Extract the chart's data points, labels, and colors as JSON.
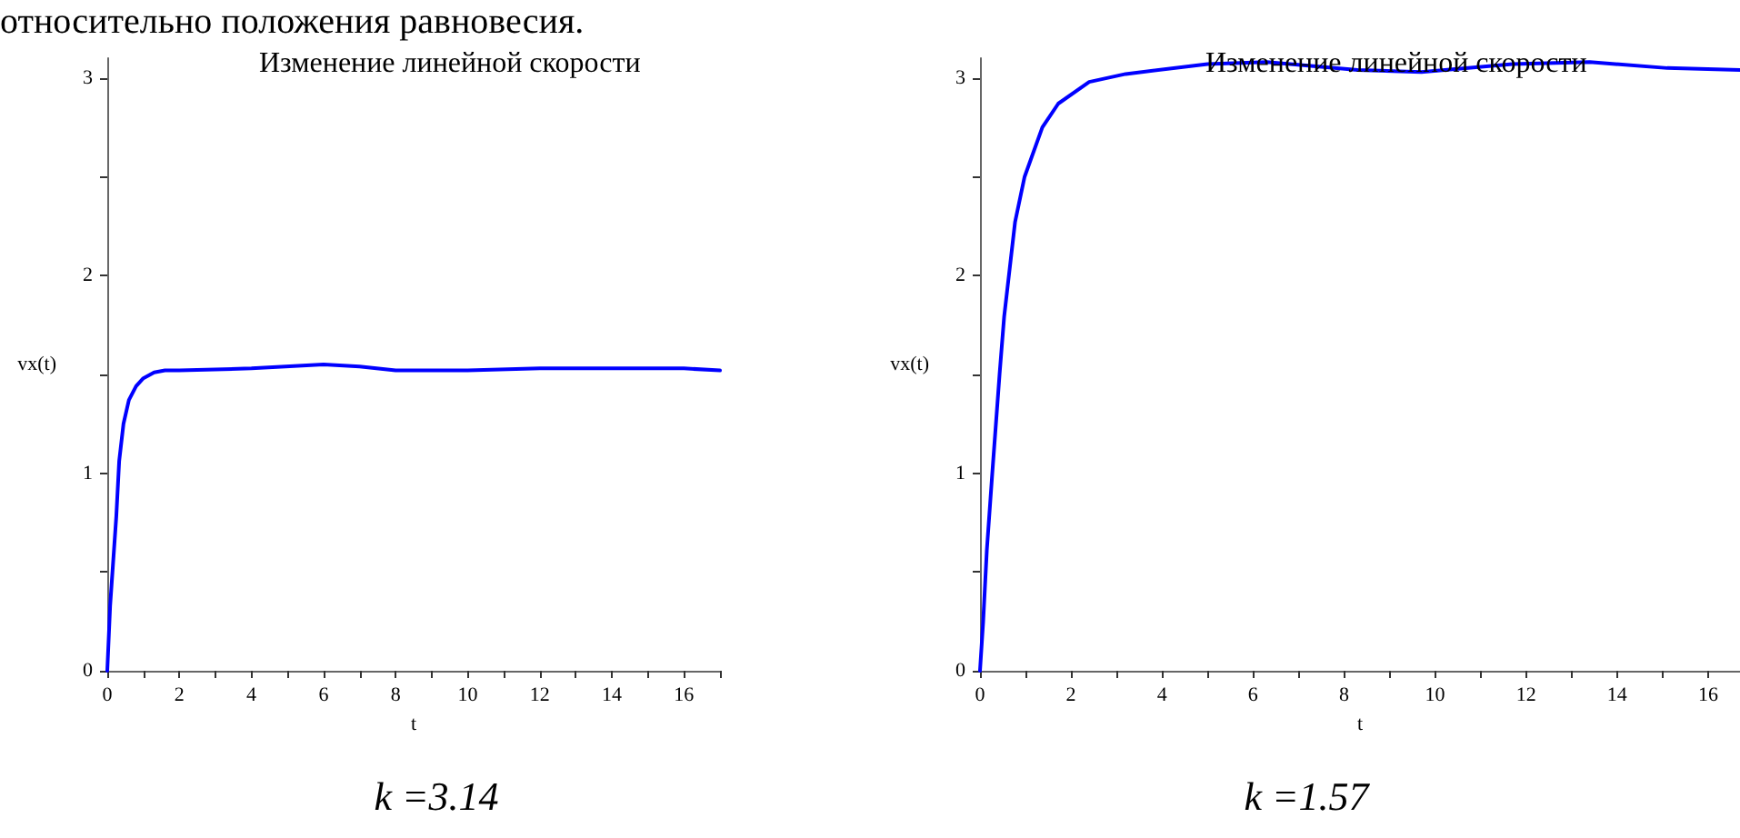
{
  "chart_data": [
    {
      "type": "other",
      "annotations": [
        "относительно положения равновесия."
      ]
    },
    {
      "type": "line",
      "title": "Изменение линейной скорости",
      "xlabel": "t",
      "ylabel": "vx(t)",
      "annotations": [
        "k =3.14"
      ],
      "xlim": [
        0,
        17
      ],
      "ylim": [
        0,
        3.1
      ],
      "xticks": [
        0,
        {
          "value": 1,
          "label": null
        },
        2,
        {
          "value": 3,
          "label": null
        },
        4,
        {
          "value": 5,
          "label": null
        },
        6,
        {
          "value": 7,
          "label": null
        },
        8,
        {
          "value": 9,
          "label": null
        },
        10,
        {
          "value": 11,
          "label": null
        },
        12,
        {
          "value": 13,
          "label": null
        },
        14,
        {
          "value": 15,
          "label": null
        },
        16,
        {
          "value": 17,
          "label": null
        }
      ],
      "yticks": [
        0,
        {
          "value": 0.5,
          "label": null
        },
        1,
        {
          "value": 1.5,
          "label": null
        },
        2,
        {
          "value": 2.5,
          "label": null
        },
        3
      ],
      "grid": false,
      "marker": "none",
      "line_style": "solid",
      "series": [
        {
          "color": "#0000ff",
          "x": [
            0,
            0.08,
            0.25,
            0.33,
            0.45,
            0.6,
            0.8,
            1.0,
            1.3,
            1.6,
            2,
            4,
            6,
            7,
            8,
            10,
            12,
            14,
            16,
            17
          ],
          "values": [
            0,
            0.33,
            0.78,
            1.06,
            1.25,
            1.37,
            1.44,
            1.48,
            1.51,
            1.52,
            1.52,
            1.53,
            1.55,
            1.54,
            1.52,
            1.52,
            1.53,
            1.53,
            1.53,
            1.52
          ]
        }
      ]
    },
    {
      "type": "line",
      "title": "Изменение линейной скорости",
      "xlabel": "t",
      "ylabel": "vx(t)",
      "annotations": [
        "k =1.57"
      ],
      "xlim": [
        0,
        16.7
      ],
      "ylim": [
        0,
        3.1
      ],
      "xticks": [
        0,
        {
          "value": 1,
          "label": null
        },
        2,
        {
          "value": 3,
          "label": null
        },
        4,
        {
          "value": 5,
          "label": null
        },
        6,
        {
          "value": 7,
          "label": null
        },
        8,
        {
          "value": 9,
          "label": null
        },
        10,
        {
          "value": 11,
          "label": null
        },
        12,
        {
          "value": 13,
          "label": null
        },
        14,
        {
          "value": 15,
          "label": null
        },
        16
      ],
      "yticks": [
        0,
        {
          "value": 0.5,
          "label": null
        },
        1,
        {
          "value": 1.5,
          "label": null
        },
        2,
        {
          "value": 2.5,
          "label": null
        },
        3
      ],
      "grid": false,
      "marker": "none",
      "line_style": "solid",
      "series": [
        {
          "color": "#0000ff",
          "x": [
            0,
            0.07,
            0.15,
            0.27,
            0.43,
            0.53,
            0.77,
            0.98,
            1.37,
            1.72,
            2.4,
            3.2,
            5.0,
            6.3,
            8.3,
            9.7,
            11.7,
            13.4,
            15.1,
            16.7
          ],
          "values": [
            0,
            0.25,
            0.61,
            1.0,
            1.5,
            1.79,
            2.27,
            2.5,
            2.75,
            2.87,
            2.98,
            3.02,
            3.07,
            3.08,
            3.04,
            3.03,
            3.07,
            3.08,
            3.05,
            3.04
          ]
        }
      ]
    }
  ]
}
